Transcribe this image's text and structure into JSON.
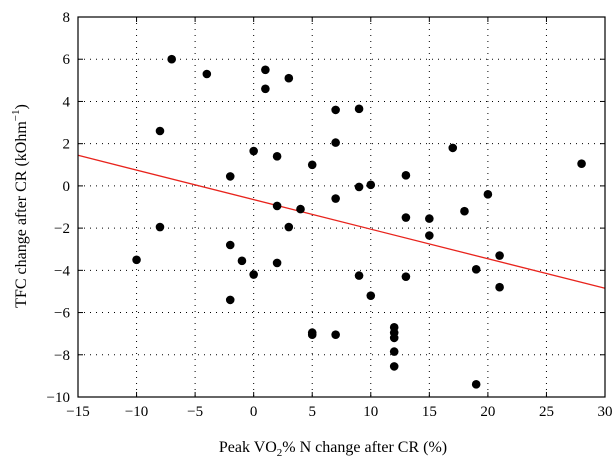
{
  "chart_data": {
    "type": "scatter",
    "xlabel": "Peak VO2% N change after CR (%)",
    "xlabel_parts": {
      "before": "Peak VO",
      "sub": "2",
      "after": "% N change after CR (%)"
    },
    "ylabel": "TFC change after CR (kOhm-1)",
    "ylabel_parts": {
      "before": "TFC change after CR (kOhm",
      "sup": "−1",
      "after": ")"
    },
    "xlim": [
      -15,
      30
    ],
    "ylim": [
      -10,
      8
    ],
    "xticks": [
      -15,
      -10,
      -5,
      0,
      5,
      10,
      15,
      20,
      25,
      30
    ],
    "yticks": [
      -10,
      -8,
      -6,
      -4,
      -2,
      0,
      2,
      4,
      6,
      8
    ],
    "grid": true,
    "grid_style": "dotted",
    "point_color": "#000000",
    "trendline": {
      "x": [
        -15,
        30
      ],
      "y": [
        1.45,
        -4.85
      ],
      "color": "#e8231c"
    },
    "points": [
      [
        -10,
        -3.5
      ],
      [
        -8,
        2.6
      ],
      [
        -8,
        -1.95
      ],
      [
        -7,
        6.0
      ],
      [
        -4,
        5.3
      ],
      [
        -2,
        0.45
      ],
      [
        -2,
        -2.8
      ],
      [
        -2,
        -5.4
      ],
      [
        -1,
        -3.55
      ],
      [
        0,
        1.65
      ],
      [
        0,
        -4.2
      ],
      [
        1,
        5.5
      ],
      [
        1,
        4.6
      ],
      [
        2,
        1.4
      ],
      [
        2,
        -0.95
      ],
      [
        2,
        -3.65
      ],
      [
        3,
        5.1
      ],
      [
        3,
        -1.95
      ],
      [
        4,
        -1.1
      ],
      [
        5,
        1.0
      ],
      [
        5,
        -6.95
      ],
      [
        5,
        -7.05
      ],
      [
        7,
        3.6
      ],
      [
        7,
        2.05
      ],
      [
        7,
        -0.6
      ],
      [
        7,
        -7.05
      ],
      [
        9,
        3.65
      ],
      [
        9,
        -0.05
      ],
      [
        9,
        -4.25
      ],
      [
        10,
        0.05
      ],
      [
        10,
        -5.2
      ],
      [
        12,
        -6.7
      ],
      [
        12,
        -6.95
      ],
      [
        12,
        -7.2
      ],
      [
        12,
        -7.85
      ],
      [
        12,
        -8.55
      ],
      [
        13,
        0.5
      ],
      [
        13,
        -1.5
      ],
      [
        13,
        -4.3
      ],
      [
        15,
        -1.55
      ],
      [
        15,
        -2.35
      ],
      [
        17,
        1.8
      ],
      [
        18,
        -1.2
      ],
      [
        19,
        -3.95
      ],
      [
        19,
        -9.4
      ],
      [
        20,
        -0.4
      ],
      [
        21,
        -3.3
      ],
      [
        21,
        -4.8
      ],
      [
        28,
        1.05
      ]
    ]
  }
}
